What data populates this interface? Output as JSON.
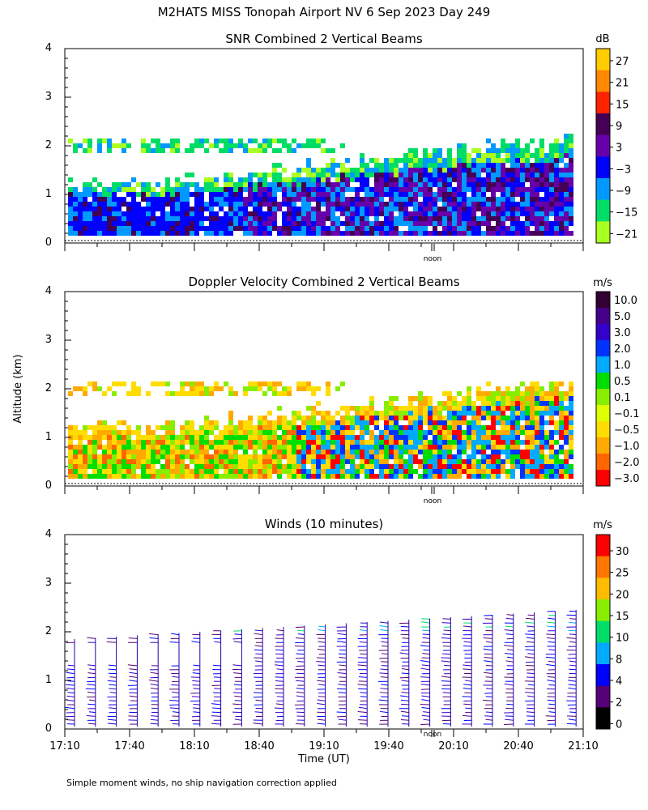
{
  "header": {
    "title": "M2HATS MISS Tonopah Airport NV   6 Sep 2023 Day 249"
  },
  "footer": {
    "note": "Simple moment winds, no ship navigation correction applied"
  },
  "chart_data": [
    {
      "type": "heatmap",
      "title": "SNR Combined 2 Vertical Beams",
      "xlabel": "",
      "ylabel": "",
      "ylim": [
        0,
        4
      ],
      "yticks": [
        "0",
        "1",
        "2",
        "3",
        "4"
      ],
      "noon_label": "noon",
      "colorbar": {
        "unit": "dB",
        "labels": [
          "27",
          "21",
          "15",
          "9",
          "3",
          "−3",
          "−9",
          "−15",
          "−21"
        ],
        "colors": [
          "#ffcc00",
          "#ff8800",
          "#ff2200",
          "#440055",
          "#6600aa",
          "#0000ff",
          "#0099ff",
          "#00dd66",
          "#aaff22"
        ]
      }
    },
    {
      "type": "heatmap",
      "title": "Doppler Velocity Combined 2 Vertical Beams",
      "xlabel": "",
      "ylabel": "Altitude (km)",
      "ylim": [
        0,
        4
      ],
      "yticks": [
        "0",
        "1",
        "2",
        "3",
        "4"
      ],
      "noon_label": "noon",
      "colorbar": {
        "unit": "m/s",
        "labels": [
          "10.0",
          "5.0",
          "3.0",
          "2.0",
          "1.0",
          "0.5",
          "0.1",
          "−0.1",
          "−0.5",
          "−1.0",
          "−2.0",
          "−3.0"
        ],
        "colors": [
          "#330033",
          "#440088",
          "#3300cc",
          "#0033ff",
          "#00aaff",
          "#00dd00",
          "#88ee00",
          "#ddff00",
          "#ffdd00",
          "#ffaa00",
          "#ff6600",
          "#ff0000"
        ]
      }
    },
    {
      "type": "scatter",
      "title": "Winds (10 minutes)",
      "xlabel": "Time (UT)",
      "ylabel": "",
      "ylim": [
        0,
        4
      ],
      "yticks": [
        "0",
        "1",
        "2",
        "3",
        "4"
      ],
      "xticks": [
        "17:10",
        "17:40",
        "18:10",
        "18:40",
        "19:10",
        "19:40",
        "20:10",
        "20:40",
        "21:10"
      ],
      "noon_label": "noon",
      "colorbar": {
        "unit": "m/s",
        "labels": [
          "30",
          "25",
          "20",
          "15",
          "10",
          "8",
          "4",
          "2",
          "0"
        ],
        "colors": [
          "#ff0000",
          "#ff7700",
          "#ffbb00",
          "#88ee00",
          "#00dd66",
          "#00aaff",
          "#0000ff",
          "#550077",
          "#000000"
        ]
      }
    }
  ]
}
